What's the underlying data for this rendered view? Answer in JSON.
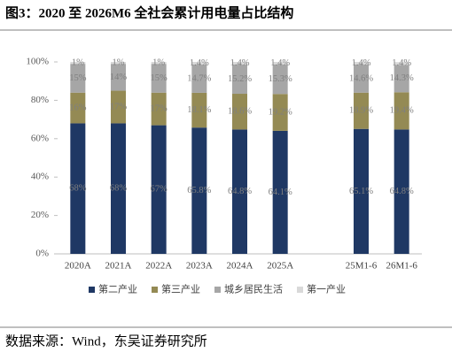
{
  "chart_data": {
    "type": "stacked_bar",
    "title": "图3：2020 至 2026M6 全社会累计用电量占比结构",
    "categories": [
      "2020A",
      "2021A",
      "2022A",
      "2023A",
      "2024A",
      "2025A",
      null,
      "25M1-6",
      "26M1-6"
    ],
    "series": [
      {
        "name": "第二产业",
        "color": "#1f3864",
        "values": [
          68,
          68,
          67,
          65.8,
          64.8,
          64.1,
          null,
          65.1,
          64.8
        ],
        "value_labels": [
          "68%",
          "68%",
          "67%",
          "65.8%",
          "64.8%",
          "64.1%",
          null,
          "65.1%",
          "64.8%"
        ]
      },
      {
        "name": "第三产业",
        "color": "#948a54",
        "values": [
          16,
          17,
          17,
          18.1,
          18.6,
          19.2,
          null,
          18.9,
          19.4
        ],
        "value_labels": [
          "16%",
          "17%",
          "17%",
          "18.1%",
          "18.6%",
          "19.2%",
          null,
          "18.9%",
          "19.4%"
        ]
      },
      {
        "name": "城乡居民生活",
        "color": "#a6a6a6",
        "values": [
          15,
          14,
          15,
          14.7,
          15.2,
          15.3,
          null,
          14.6,
          14.3
        ],
        "value_labels": [
          "15%",
          "14%",
          "15%",
          "14.7%",
          "15.2%",
          "15.3%",
          null,
          "14.6%",
          "14.3%"
        ]
      },
      {
        "name": "第一产业",
        "color": "#d9d9d9",
        "values": [
          1,
          1,
          1,
          1.4,
          1.4,
          1.4,
          null,
          1.4,
          1.4
        ],
        "value_labels": [
          "1%",
          "1%",
          "1%",
          "1.4%",
          "1.4%",
          "1.4%",
          null,
          "1.4%",
          "1.4%"
        ]
      }
    ],
    "ylim": [
      0,
      100
    ],
    "yticks": [
      {
        "value": 0,
        "label": "0%"
      },
      {
        "value": 20,
        "label": "20%"
      },
      {
        "value": 40,
        "label": "40%"
      },
      {
        "value": 60,
        "label": "60%"
      },
      {
        "value": 80,
        "label": "80%"
      },
      {
        "value": 100,
        "label": "100%"
      }
    ],
    "grid": false,
    "legend": "bottom"
  },
  "source": "数据来源：Wind，东吴证券研究所"
}
